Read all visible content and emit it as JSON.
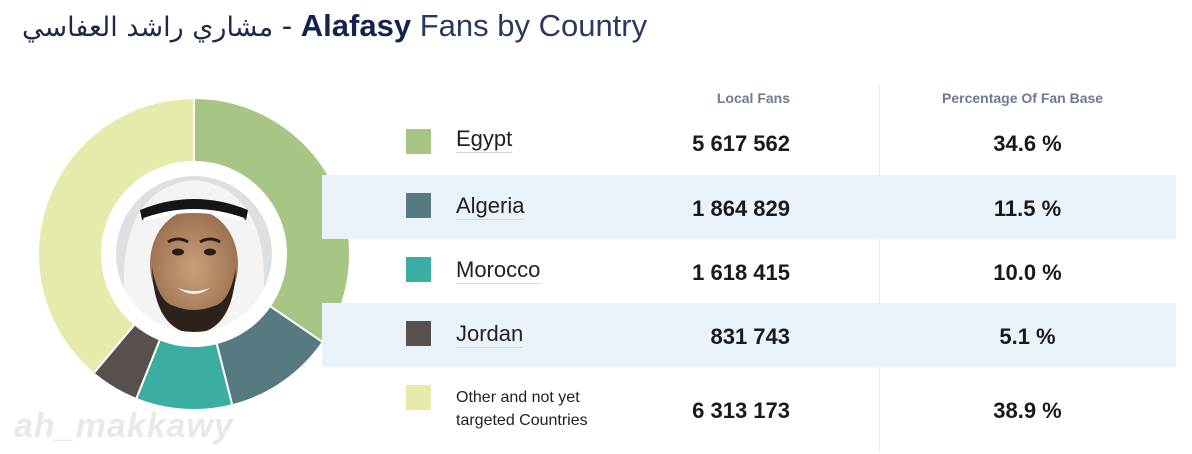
{
  "header": {
    "title_arabic": "مشاري راشد العفاسي",
    "title_dash": " - ",
    "title_name": "Alafasy",
    "title_rest": " Fans by Country"
  },
  "table": {
    "col_fans": "Local Fans",
    "col_pct": "Percentage Of Fan Base",
    "rows": [
      {
        "country": "Egypt",
        "fans": "5 617 562",
        "pct": "34.6 %",
        "color": "#a8c683"
      },
      {
        "country": "Algeria",
        "fans": "1 864 829",
        "pct": "11.5 %",
        "color": "#557a7f"
      },
      {
        "country": "Morocco",
        "fans": "1 618 415",
        "pct": "10.0 %",
        "color": "#3bada2"
      },
      {
        "country": "Jordan",
        "fans": "831 743",
        "pct": "5.1 %",
        "color": "#57504d"
      },
      {
        "country": "Other and not yet targeted Countries",
        "fans": "6 313 173",
        "pct": "38.9 %",
        "color": "#e6eaaa"
      }
    ]
  },
  "watermark": "ah_makkawy",
  "chart_data": {
    "type": "pie",
    "donut": true,
    "categories": [
      "Egypt",
      "Algeria",
      "Morocco",
      "Jordan",
      "Other and not yet targeted Countries"
    ],
    "values": [
      34.6,
      11.5,
      10.0,
      5.1,
      38.9
    ],
    "counts": [
      5617562,
      1864829,
      1618415,
      831743,
      6313173
    ],
    "colors": [
      "#a8c683",
      "#557a7f",
      "#3bada2",
      "#57504d",
      "#e6eaaa"
    ],
    "center_image": "portrait-photo"
  }
}
